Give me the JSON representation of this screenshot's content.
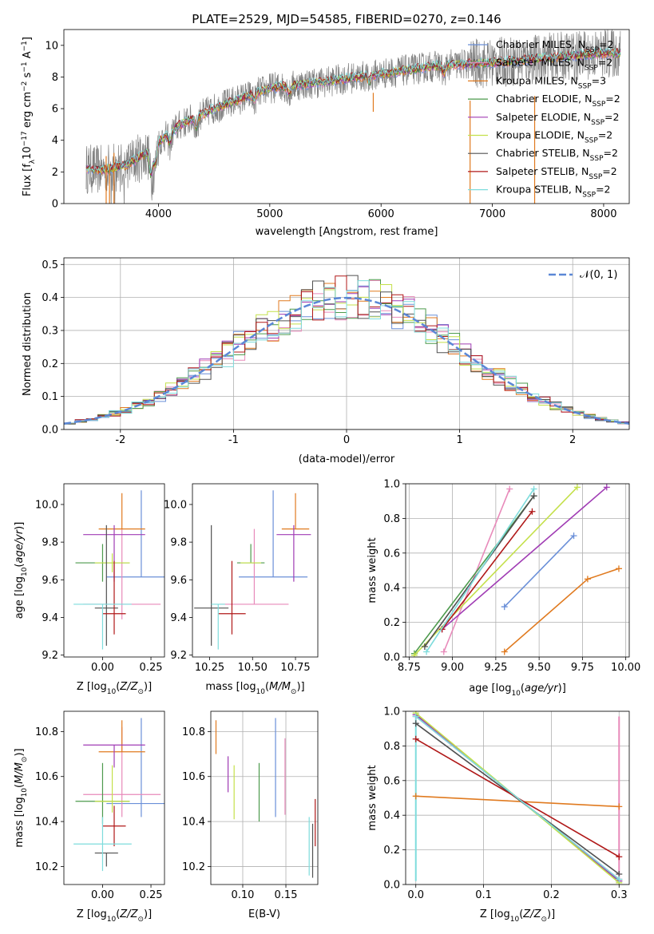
{
  "figure": {
    "title": "PLATE=2529, MJD=54585, FIBERID=0270, z=0.146"
  },
  "models": [
    {
      "name": "Chabrier MILES",
      "nssp": "2",
      "color": "#6a8fd8"
    },
    {
      "name": "Salpeter MILES",
      "nssp": "2",
      "color": "#e88aba"
    },
    {
      "name": "Kroupa MILES",
      "nssp": "3",
      "color": "#e07a1f"
    },
    {
      "name": "Chabrier ELODIE",
      "nssp": "2",
      "color": "#4c9a4c"
    },
    {
      "name": "Salpeter ELODIE",
      "nssp": "2",
      "color": "#a03cb4"
    },
    {
      "name": "Kroupa ELODIE",
      "nssp": "2",
      "color": "#c4e04a"
    },
    {
      "name": "Chabrier STELIB",
      "nssp": "2",
      "color": "#505050"
    },
    {
      "name": "Salpeter STELIB",
      "nssp": "2",
      "color": "#b01818"
    },
    {
      "name": "Kroupa STELIB",
      "nssp": "2",
      "color": "#7edcdc"
    }
  ],
  "chart_data": [
    {
      "id": "spectrum",
      "type": "line",
      "xlabel": "wavelength [Angstrom, rest frame]",
      "ylabel": "Flux [f_λ 10^-17 erg cm^-2 s^-1 A^-1]",
      "xlim": [
        3150,
        8230
      ],
      "ylim": [
        0,
        11
      ],
      "xticks": [
        4000,
        5000,
        6000,
        7000,
        8000
      ],
      "yticks": [
        0,
        2,
        4,
        6,
        8,
        10
      ],
      "legend_position": "top-right",
      "data_color": "#808080",
      "continuum": {
        "x": [
          3350,
          3500,
          3700,
          3900,
          4000,
          4200,
          4500,
          5000,
          5500,
          6000,
          6500,
          7000,
          7500,
          8000,
          8150
        ],
        "y": [
          2.2,
          2.1,
          2.4,
          3.2,
          3.9,
          5.0,
          6.0,
          7.3,
          7.7,
          8.2,
          8.7,
          8.9,
          9.2,
          9.5,
          9.5
        ]
      }
    },
    {
      "id": "residuals",
      "type": "line",
      "xlabel": "(data-model)/error",
      "ylabel": "Normed distribution",
      "xlim": [
        -2.5,
        2.5
      ],
      "ylim": [
        0,
        0.52
      ],
      "xticks": [
        -2,
        -1,
        0,
        1,
        2
      ],
      "yticks": [
        0.0,
        0.1,
        0.2,
        0.3,
        0.4,
        0.5
      ],
      "grid": true,
      "legend_position": "top-right",
      "reference_curve": {
        "label": "𝒩(0, 1)",
        "mean": 0,
        "sigma": 1,
        "color": "#5b87d6"
      }
    },
    {
      "id": "age-vs-Z",
      "type": "scatter",
      "xlabel": "Z [log10(Z/Z☉)]",
      "ylabel": "age [log10(age/yr)]",
      "xlim": [
        -0.2,
        0.32
      ],
      "ylim": [
        9.19,
        10.11
      ],
      "xticks": [
        0.0,
        0.25
      ],
      "yticks": [
        9.2,
        9.4,
        9.6,
        9.8,
        10.0
      ],
      "points": [
        {
          "model": 0,
          "x": 0.2,
          "xerr": 0.18,
          "y": 9.615,
          "yerr": [
            0.0,
            0.46
          ]
        },
        {
          "model": 1,
          "x": 0.1,
          "xerr": 0.2,
          "y": 9.47,
          "yerr": [
            0.08,
            0.4
          ]
        },
        {
          "model": 2,
          "x": 0.1,
          "xerr": 0.12,
          "y": 9.87,
          "yerr": [
            0.0,
            0.19
          ]
        },
        {
          "model": 3,
          "x": 0.0,
          "xerr": 0.14,
          "y": 9.69,
          "yerr": [
            0.1,
            0.1
          ]
        },
        {
          "model": 4,
          "x": 0.06,
          "xerr": 0.16,
          "y": 9.84,
          "yerr": [
            0.25,
            0.05
          ]
        },
        {
          "model": 5,
          "x": 0.05,
          "xerr": 0.09,
          "y": 9.69,
          "yerr": [
            0.05,
            0.05
          ]
        },
        {
          "model": 6,
          "x": 0.02,
          "xerr": 0.06,
          "y": 9.45,
          "yerr": [
            0.2,
            0.44
          ]
        },
        {
          "model": 7,
          "x": 0.06,
          "xerr": 0.06,
          "y": 9.42,
          "yerr": [
            0.11,
            0.28
          ]
        },
        {
          "model": 8,
          "x": 0.0,
          "xerr": 0.15,
          "y": 9.47,
          "yerr": [
            0.24,
            0.0
          ]
        }
      ]
    },
    {
      "id": "age-vs-mass",
      "type": "scatter",
      "xlabel": "mass [log10(M/M☉)]",
      "xlim": [
        10.15,
        10.88
      ],
      "ylim": [
        9.19,
        10.11
      ],
      "xticks": [
        10.25,
        10.5,
        10.75
      ],
      "yticks": [
        9.2,
        9.4,
        9.6,
        9.8,
        10.0
      ],
      "points": [
        {
          "model": 0,
          "x": 10.62,
          "xerr": 0.2,
          "y": 9.615,
          "yerr": [
            0.0,
            0.46
          ]
        },
        {
          "model": 1,
          "x": 10.51,
          "xerr": 0.2,
          "y": 9.47,
          "yerr": [
            0.0,
            0.4
          ]
        },
        {
          "model": 2,
          "x": 10.75,
          "xerr": 0.08,
          "y": 9.87,
          "yerr": [
            0.0,
            0.19
          ]
        },
        {
          "model": 3,
          "x": 10.49,
          "xerr": 0.08,
          "y": 9.69,
          "yerr": [
            0.0,
            0.1
          ]
        },
        {
          "model": 4,
          "x": 10.74,
          "xerr": 0.1,
          "y": 9.84,
          "yerr": [
            0.25,
            0.05
          ]
        },
        {
          "model": 5,
          "x": 10.49,
          "xerr": 0.06,
          "y": 9.69,
          "yerr": [
            0.0,
            0.0
          ]
        },
        {
          "model": 6,
          "x": 10.26,
          "xerr": 0.1,
          "y": 9.45,
          "yerr": [
            0.2,
            0.44
          ]
        },
        {
          "model": 7,
          "x": 10.38,
          "xerr": 0.08,
          "y": 9.42,
          "yerr": [
            0.11,
            0.28
          ]
        },
        {
          "model": 8,
          "x": 10.3,
          "xerr": 0.04,
          "y": 9.47,
          "yerr": [
            0.24,
            0.0
          ]
        }
      ]
    },
    {
      "id": "massweight-vs-age",
      "type": "line",
      "xlabel": "age [log10(age/yr)]",
      "ylabel": "mass weight",
      "xlim": [
        8.73,
        10.02
      ],
      "ylim": [
        0,
        1.0
      ],
      "xticks": [
        8.75,
        9.0,
        9.25,
        9.5,
        9.75,
        10.0
      ],
      "yticks": [
        0.0,
        0.2,
        0.4,
        0.6,
        0.8,
        1.0
      ],
      "grid": true,
      "series": [
        {
          "model": 0,
          "x": [
            9.3,
            9.7
          ],
          "y": [
            0.29,
            0.7
          ]
        },
        {
          "model": 1,
          "x": [
            8.95,
            9.33
          ],
          "y": [
            0.03,
            0.97
          ]
        },
        {
          "model": 2,
          "x": [
            9.3,
            9.78,
            9.96
          ],
          "y": [
            0.03,
            0.45,
            0.51
          ]
        },
        {
          "model": 3,
          "x": [
            8.78,
            9.47
          ],
          "y": [
            0.02,
            0.93
          ]
        },
        {
          "model": 4,
          "x": [
            8.94,
            9.89
          ],
          "y": [
            0.16,
            0.98
          ]
        },
        {
          "model": 5,
          "x": [
            8.78,
            9.72
          ],
          "y": [
            0.01,
            0.98
          ]
        },
        {
          "model": 6,
          "x": [
            8.84,
            9.47
          ],
          "y": [
            0.06,
            0.93
          ]
        },
        {
          "model": 7,
          "x": [
            8.94,
            9.46
          ],
          "y": [
            0.16,
            0.84
          ]
        },
        {
          "model": 8,
          "x": [
            8.85,
            9.47
          ],
          "y": [
            0.03,
            0.97
          ]
        }
      ]
    },
    {
      "id": "mass-vs-Z",
      "type": "scatter",
      "xlabel": "Z [log10(Z/Z☉)]",
      "ylabel": "mass [log10(M/M☉)]",
      "xlim": [
        -0.2,
        0.32
      ],
      "ylim": [
        10.12,
        10.89
      ],
      "xticks": [
        0.0,
        0.25
      ],
      "yticks": [
        10.2,
        10.4,
        10.6,
        10.8
      ],
      "points": [
        {
          "model": 0,
          "x": 0.2,
          "xerr": 0.18,
          "y": 10.48,
          "yerr": [
            0.06,
            0.38
          ]
        },
        {
          "model": 1,
          "x": 0.1,
          "xerr": 0.2,
          "y": 10.52,
          "yerr": [
            0.1,
            0.3
          ]
        },
        {
          "model": 2,
          "x": 0.1,
          "xerr": 0.12,
          "y": 10.71,
          "yerr": [
            0.0,
            0.14
          ]
        },
        {
          "model": 3,
          "x": 0.0,
          "xerr": 0.14,
          "y": 10.49,
          "yerr": [
            0.1,
            0.17
          ]
        },
        {
          "model": 4,
          "x": 0.06,
          "xerr": 0.16,
          "y": 10.74,
          "yerr": [
            0.1,
            0.0
          ]
        },
        {
          "model": 5,
          "x": 0.05,
          "xerr": 0.09,
          "y": 10.49,
          "yerr": [
            0.05,
            0.16
          ]
        },
        {
          "model": 6,
          "x": 0.02,
          "xerr": 0.06,
          "y": 10.26,
          "yerr": [
            0.06,
            0.0
          ]
        },
        {
          "model": 7,
          "x": 0.06,
          "xerr": 0.06,
          "y": 10.38,
          "yerr": [
            0.09,
            0.09
          ]
        },
        {
          "model": 8,
          "x": 0.0,
          "xerr": 0.15,
          "y": 10.3,
          "yerr": [
            0.12,
            0.12
          ]
        }
      ]
    },
    {
      "id": "mass-vs-ebv",
      "type": "scatter",
      "xlabel": "E(B-V)",
      "xlim": [
        0.063,
        0.187
      ],
      "ylim": [
        10.12,
        10.89
      ],
      "xticks": [
        0.1,
        0.15
      ],
      "yticks": [
        10.2,
        10.4,
        10.6,
        10.8
      ],
      "grid": true,
      "points": [
        {
          "model": 0,
          "x": 0.138,
          "y": 10.64,
          "yerr": [
            0.22,
            0.22
          ]
        },
        {
          "model": 1,
          "x": 0.149,
          "y": 10.6,
          "yerr": [
            0.17,
            0.17
          ]
        },
        {
          "model": 2,
          "x": 0.069,
          "y": 10.78,
          "yerr": [
            0.08,
            0.07
          ]
        },
        {
          "model": 3,
          "x": 0.119,
          "y": 10.53,
          "yerr": [
            0.13,
            0.13
          ]
        },
        {
          "model": 4,
          "x": 0.083,
          "y": 10.61,
          "yerr": [
            0.08,
            0.08
          ]
        },
        {
          "model": 5,
          "x": 0.09,
          "y": 10.53,
          "yerr": [
            0.12,
            0.12
          ]
        },
        {
          "model": 6,
          "x": 0.181,
          "y": 10.27,
          "yerr": [
            0.12,
            0.12
          ]
        },
        {
          "model": 7,
          "x": 0.184,
          "y": 10.4,
          "yerr": [
            0.11,
            0.1
          ]
        },
        {
          "model": 8,
          "x": 0.177,
          "y": 10.29,
          "yerr": [
            0.13,
            0.13
          ]
        }
      ]
    },
    {
      "id": "massweight-vs-Z",
      "type": "line",
      "xlabel": "Z [log10(Z/Z☉)]",
      "ylabel": "mass weight",
      "xlim": [
        -0.015,
        0.315
      ],
      "ylim": [
        0,
        1.0
      ],
      "xticks": [
        0.0,
        0.1,
        0.2,
        0.3
      ],
      "yticks": [
        0.0,
        0.2,
        0.4,
        0.6,
        0.8,
        1.0
      ],
      "grid": true,
      "series": [
        {
          "model": 0,
          "x": [
            0.0,
            0.3
          ],
          "y": [
            0.97,
            0.03
          ]
        },
        {
          "model": 1,
          "x": [
            0.0,
            0.3
          ],
          "y": [
            0.97,
            0.03
          ]
        },
        {
          "model": 2,
          "x": [
            0.0,
            0.3
          ],
          "y": [
            0.51,
            0.45
          ]
        },
        {
          "model": 3,
          "x": [
            0.0,
            0.3
          ],
          "y": [
            0.98,
            0.02
          ]
        },
        {
          "model": 4,
          "x": [
            0.0,
            0.3
          ],
          "y": [
            0.98,
            0.02
          ]
        },
        {
          "model": 5,
          "x": [
            0.0,
            0.3
          ],
          "y": [
            0.99,
            0.01
          ]
        },
        {
          "model": 6,
          "x": [
            0.0,
            0.3
          ],
          "y": [
            0.93,
            0.06
          ]
        },
        {
          "model": 7,
          "x": [
            0.0,
            0.3
          ],
          "y": [
            0.84,
            0.16
          ]
        },
        {
          "model": 8,
          "x": [
            0.0,
            0.3
          ],
          "y": [
            0.97,
            0.03
          ]
        }
      ],
      "vertical_markers": [
        {
          "model": 8,
          "x": 0.0,
          "y": [
            0.02,
            0.97
          ]
        },
        {
          "model": 1,
          "x": 0.3,
          "y": [
            0.03,
            0.97
          ]
        }
      ]
    }
  ]
}
